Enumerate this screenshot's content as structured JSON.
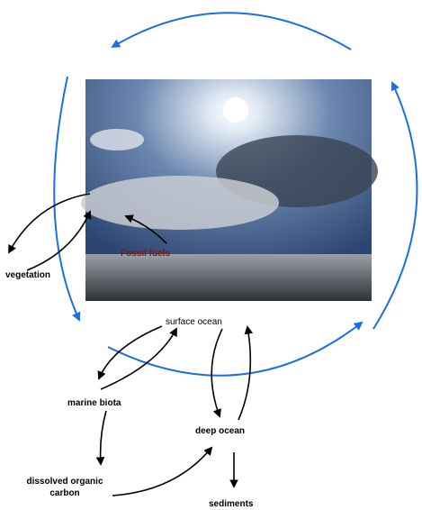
{
  "nodes": [
    {
      "label": "Fossil fuels"
    },
    {
      "label": "vegetation"
    },
    {
      "label": "surface ocean"
    },
    {
      "label": "marine biota"
    },
    {
      "label": "deep ocean"
    },
    {
      "label": [
        "dissolved organic",
        "carbon"
      ]
    },
    {
      "label": "sediments"
    }
  ]
}
